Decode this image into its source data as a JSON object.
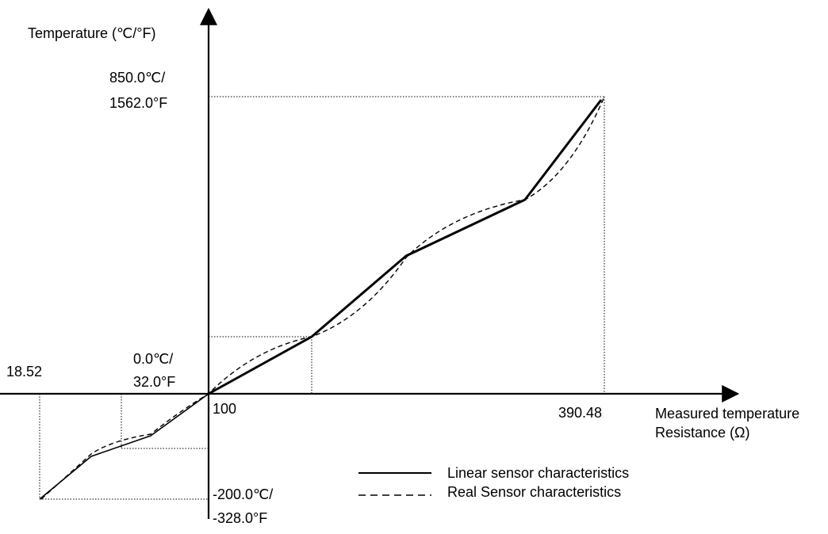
{
  "y_axis_title": "Temperature (℃/°F)",
  "x_axis_title_line1": "Measured temperature",
  "x_axis_title_line2": "Resistance (Ω)",
  "labels": {
    "max_temp_c": "850.0℃/",
    "max_temp_f": "1562.0°F",
    "zero_temp_c": "0.0℃/",
    "zero_temp_f": "32.0°F",
    "min_temp_c": "-200.0℃/",
    "min_temp_f": "-328.0°F",
    "min_resistance": "18.52",
    "zero_resistance": "100",
    "max_resistance": "390.48"
  },
  "legend": {
    "linear": "Linear sensor characteristics",
    "real": "Real Sensor characteristics"
  },
  "colors": {
    "line": "#000000",
    "background": "#ffffff"
  }
}
